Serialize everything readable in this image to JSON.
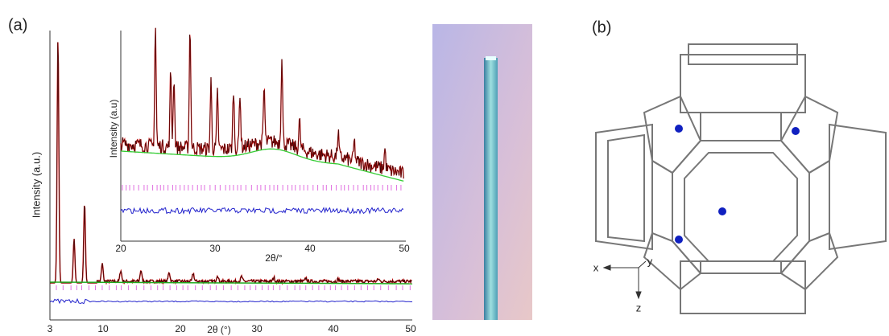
{
  "panel_a": {
    "label": "(a)",
    "main_plot": {
      "y_label": "Intensity (a.u.)",
      "x_label": "2θ (°)",
      "x_ticks": [
        "3",
        "10",
        "20",
        "30",
        "40",
        "50"
      ]
    },
    "inset": {
      "y_label": "Intensity (a.u)",
      "x_label": "2θ/°",
      "x_ticks": [
        "20",
        "30",
        "40",
        "50"
      ]
    }
  },
  "panel_b": {
    "label": "(b)",
    "axes": [
      "x",
      "y",
      "z"
    ]
  }
}
